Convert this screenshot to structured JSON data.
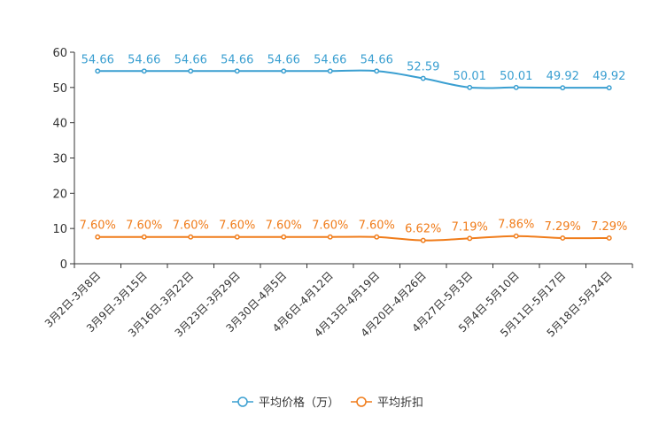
{
  "chart_data": {
    "type": "line",
    "categories": [
      "3月2日-3月8日",
      "3月9日-3月15日",
      "3月16日-3月22日",
      "3月23日-3月29日",
      "3月30日-4月5日",
      "4月6日-4月12日",
      "4月13日-4月19日",
      "4月20日-4月26日",
      "4月27日-5月3日",
      "5月4日-5月10日",
      "5月11日-5月17日",
      "5月18日-5月24日"
    ],
    "ylim": [
      0,
      60
    ],
    "yticks": [
      "0",
      "10",
      "20",
      "30",
      "40",
      "50",
      "60"
    ],
    "series": [
      {
        "name": "平均价格（万）",
        "color": "#3a9fd1",
        "values": [
          54.66,
          54.66,
          54.66,
          54.66,
          54.66,
          54.66,
          54.66,
          52.59,
          50.01,
          50.01,
          49.92,
          49.92
        ],
        "labels": [
          "54.66",
          "54.66",
          "54.66",
          "54.66",
          "54.66",
          "54.66",
          "54.66",
          "52.59",
          "50.01",
          "50.01",
          "49.92",
          "49.92"
        ]
      },
      {
        "name": "平均折扣",
        "color": "#f07c1a",
        "values": [
          7.6,
          7.6,
          7.6,
          7.6,
          7.6,
          7.6,
          7.6,
          6.62,
          7.19,
          7.86,
          7.29,
          7.29
        ],
        "labels": [
          "7.60%",
          "7.60%",
          "7.60%",
          "7.60%",
          "7.60%",
          "7.60%",
          "7.60%",
          "6.62%",
          "7.19%",
          "7.86%",
          "7.29%",
          "7.29%"
        ]
      }
    ],
    "legend_position": "bottom-center"
  }
}
